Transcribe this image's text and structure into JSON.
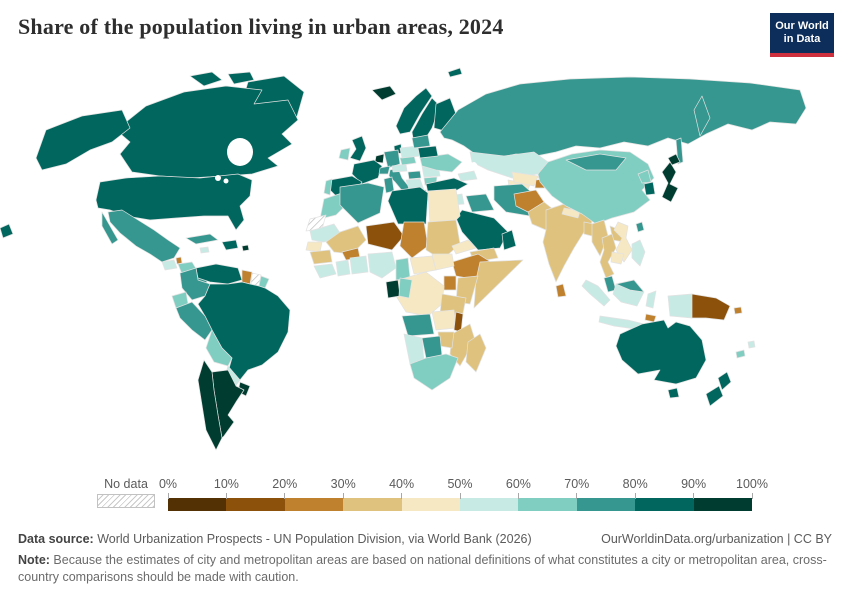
{
  "header": {
    "title": "Share of the population living in urban areas, 2024",
    "logo_line1": "Our World",
    "logo_line2": "in Data",
    "logo_bg": "#0d2e5a",
    "logo_red": "#cf303e"
  },
  "legend": {
    "no_data_label": "No data",
    "tick_labels": [
      "0%",
      "10%",
      "20%",
      "30%",
      "40%",
      "50%",
      "60%",
      "70%",
      "80%",
      "90%",
      "100%"
    ]
  },
  "footer": {
    "data_source_bold": "Data source:",
    "data_source_rest": " World Urbanization Prospects - UN Population Division, via World Bank (2026)",
    "link": "OurWorldinData.org/urbanization | CC BY",
    "note_bold": "Note:",
    "note_rest": " Because the estimates of city and metropolitan areas are based on national definitions of what constitutes a city or metropolitan area, cross-country comparisons should be made with caution."
  },
  "chart_data": {
    "type": "heatmap",
    "variant": "world-choropleth",
    "title": "Share of the population living in urban areas, 2024",
    "legend_position": "bottom",
    "palette": [
      "#543005",
      "#8c510a",
      "#bf812d",
      "#dfc27d",
      "#f6e8c3",
      "#c7eae5",
      "#80cdc1",
      "#35978f",
      "#01665e",
      "#003c30"
    ],
    "bucket_labels": [
      "0-10%",
      "10-20%",
      "20-30%",
      "30-40%",
      "40-50%",
      "50-60%",
      "60-70%",
      "70-80%",
      "80-90%",
      "90-100%"
    ],
    "no_data_key": "nodata",
    "regions": {
      "usa": 8,
      "canada": 8,
      "greenland": 8,
      "mexico": 7,
      "guatemala": 5,
      "belize": 2,
      "honduras-nicaragua": 6,
      "costa-rica-panama": 7,
      "cuba": 7,
      "jamaica": 5,
      "hispaniola": 8,
      "puerto-rico": 9,
      "colombia": 7,
      "venezuela": 8,
      "guyana": 2,
      "suriname": "nodata",
      "french-guiana": 6,
      "ecuador": 6,
      "peru": 7,
      "brazil": 8,
      "bolivia": 6,
      "paraguay": 5,
      "uruguay": 9,
      "argentina": 9,
      "chile": 9,
      "iceland": 9,
      "norway": 8,
      "svalbard": 8,
      "sweden": 8,
      "finland": 8,
      "denmark": 8,
      "uk": 8,
      "ireland": 6,
      "benelux": 9,
      "germany": 7,
      "france": 8,
      "spain": 8,
      "portugal": 6,
      "switzerland": 7,
      "italy": 7,
      "austria": 5,
      "czechia": 6,
      "poland": 5,
      "hungary": 7,
      "romania": 5,
      "balkans": 5,
      "bulgaria": 6,
      "greece": 8,
      "ukraine": 6,
      "belarus": 8,
      "baltics": 7,
      "russia": 7,
      "pacific-island": 8,
      "kazakhstan": 5,
      "caucasus": 5,
      "turkey": 8,
      "syria": 5,
      "iraq": 7,
      "israel-jordan": 9,
      "iran": 7,
      "saudi-arabia": 8,
      "yemen": 3,
      "oman": 8,
      "turkmenistan": 4,
      "uzbekistan": 4,
      "kyrgyzstan": 3,
      "tajikistan": 2,
      "afghanistan": 2,
      "pakistan": 3,
      "india": 3,
      "nepal": 4,
      "bangladesh": 3,
      "sri-lanka": 2,
      "china": 6,
      "mongolia": 7,
      "north-korea": 6,
      "south-korea": 8,
      "japan": 9,
      "taiwan": 7,
      "myanmar": 3,
      "thailand": 3,
      "laos": 3,
      "vietnam": 4,
      "cambodia": 4,
      "malaysia": 7,
      "east-malaysia": 7,
      "sumatra": 5,
      "java": 5,
      "borneo": 5,
      "sulawesi": 5,
      "philippines": 5,
      "west-papua": 5,
      "papua-new-guinea": 1,
      "timor-leste": 2,
      "solomon-islands": 2,
      "fiji": 5,
      "new-caledonia": 6,
      "australia": 8,
      "new-zealand": 8,
      "morocco": 6,
      "western-sahara": "nodata",
      "algeria": 7,
      "tunisia": 7,
      "libya": 8,
      "egypt": 4,
      "mauritania": 5,
      "senegal": 4,
      "mali": 3,
      "niger": 1,
      "chad": 2,
      "sudan": 3,
      "eritrea": 4,
      "ethiopia": 2,
      "somalia": 3,
      "guinea": 3,
      "sierra-leone-liberia": 5,
      "cote-divoire": 5,
      "burkina-faso": 2,
      "ghana-togo-benin": 5,
      "nigeria": 5,
      "cameroon": 6,
      "central-african-republic": 4,
      "south-sudan": 4,
      "uganda": 2,
      "kenya": 3,
      "dr-congo": 4,
      "gabon": 9,
      "congo": 6,
      "tanzania": 3,
      "angola": 7,
      "zambia": 4,
      "malawi": 1,
      "mozambique": 3,
      "zimbabwe": 3,
      "botswana": 7,
      "namibia": 5,
      "south-africa": 6,
      "madagascar": 3
    }
  }
}
